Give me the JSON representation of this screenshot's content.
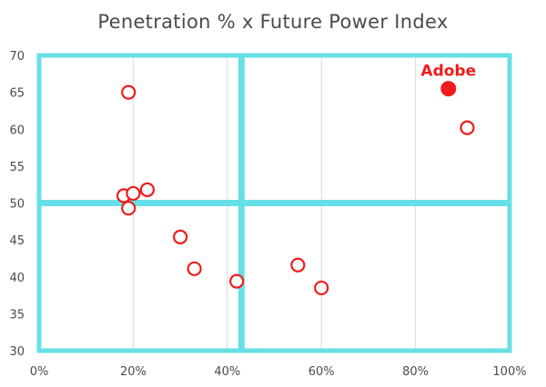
{
  "chart_data": {
    "type": "scatter",
    "title": "Penetration % x Future Power Index",
    "xlabel": "",
    "ylabel": "",
    "xlim": [
      0,
      100
    ],
    "ylim": [
      30,
      70
    ],
    "x_ticks": [
      0,
      20,
      40,
      60,
      80,
      100
    ],
    "x_tick_labels": [
      "0%",
      "20%",
      "40%",
      "60%",
      "80%",
      "100%"
    ],
    "y_ticks": [
      30,
      35,
      40,
      45,
      50,
      55,
      60,
      65,
      70
    ],
    "y_tick_labels": [
      "30",
      "35",
      "40",
      "45",
      "50",
      "55",
      "60",
      "65",
      "70"
    ],
    "quadrant_divider": {
      "x": 43,
      "y": 50
    },
    "grid": true,
    "series": [
      {
        "points": [
          {
            "x": 19,
            "y": 65
          },
          {
            "x": 18,
            "y": 51
          },
          {
            "x": 20,
            "y": 51.3
          },
          {
            "x": 23,
            "y": 51.8
          },
          {
            "x": 19,
            "y": 49.3
          },
          {
            "x": 30,
            "y": 45.4
          },
          {
            "x": 33,
            "y": 41.1
          },
          {
            "x": 42,
            "y": 39.4
          },
          {
            "x": 55,
            "y": 41.6
          },
          {
            "x": 60,
            "y": 38.5
          },
          {
            "x": 91,
            "y": 60.2
          }
        ],
        "style": "open-circle",
        "color": "#ee1c1c"
      },
      {
        "points": [
          {
            "x": 87,
            "y": 65.5,
            "label": "Adobe"
          }
        ],
        "style": "filled-circle",
        "color": "#ee1c1c"
      }
    ],
    "colors": {
      "quadrant_lines": "#66e0e6",
      "grid": "#d9d9d9",
      "axis_text": "#4a4a4a",
      "marker": "#ee1c1c"
    }
  }
}
